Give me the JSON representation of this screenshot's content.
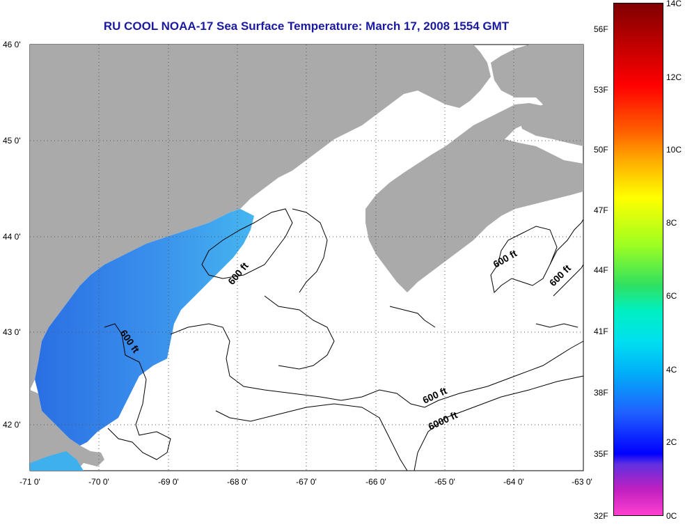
{
  "title": "RU COOL  NOAA-17  Sea Surface Temperature:  March 17, 2008 1554 GMT",
  "map": {
    "lon_ticks": [
      "-71 0'",
      "-70 0'",
      "-69 0'",
      "-68 0'",
      "-67 0'",
      "-66 0'",
      "-65 0'",
      "-64 0'",
      "-63 0'"
    ],
    "lat_ticks": [
      "46 0'",
      "45 0'",
      "44 0'",
      "43 0'",
      "42 0'"
    ],
    "contour_labels": [
      "600 ft",
      "600 ft",
      "600 ft",
      "600 ft",
      "600 ft",
      "6000 ft"
    ],
    "colors": {
      "land": "#aaaaaa",
      "ocean_nodata": "#ffffff",
      "sst_cold": "#2f7fe8",
      "sst_warm": "#3fb8f0",
      "grid": "#555555"
    }
  },
  "colorbar": {
    "celsius": [
      "14C",
      "12C",
      "10C",
      "8C",
      "6C",
      "4C",
      "2C",
      "0C"
    ],
    "fahrenheit": [
      "56F",
      "53F",
      "50F",
      "47F",
      "44F",
      "41F",
      "38F",
      "35F",
      "32F"
    ]
  }
}
